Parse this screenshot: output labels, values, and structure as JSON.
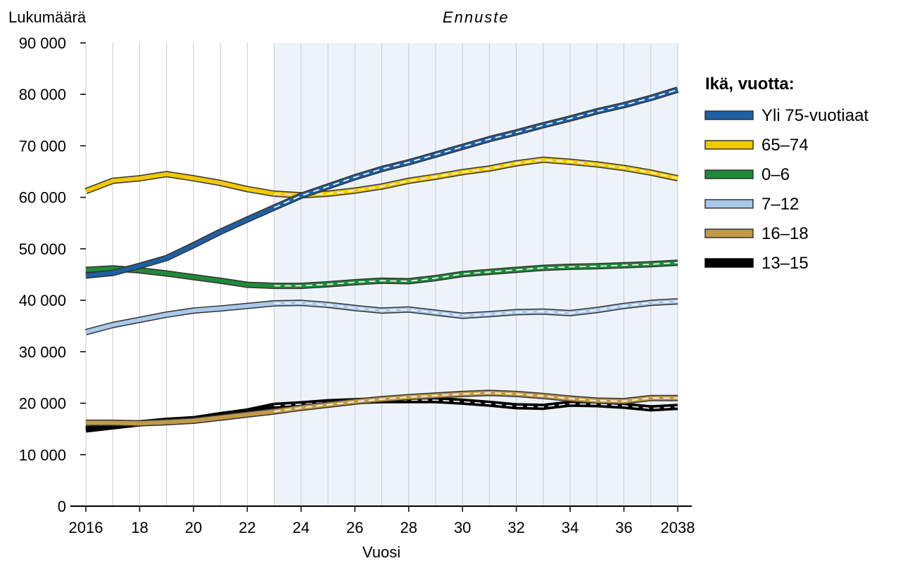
{
  "chart_data": {
    "type": "line",
    "ylabel": "Lukumäärä",
    "xlabel": "Vuosi",
    "forecast_label": "Ennuste",
    "forecast_start": 2023,
    "xlim": [
      2016,
      2038
    ],
    "ylim": [
      0,
      90000
    ],
    "y_ticks": [
      0,
      10000,
      20000,
      30000,
      40000,
      50000,
      60000,
      70000,
      80000,
      90000
    ],
    "y_tick_labels": [
      "0",
      "10 000",
      "20 000",
      "30 000",
      "40 000",
      "50 000",
      "60 000",
      "70 000",
      "80 000",
      "90 000"
    ],
    "x_ticks": [
      2016,
      2018,
      2020,
      2022,
      2024,
      2026,
      2028,
      2030,
      2032,
      2034,
      2036,
      2038
    ],
    "x_tick_labels": [
      "2016",
      "18",
      "20",
      "22",
      "24",
      "26",
      "28",
      "30",
      "32",
      "34",
      "36",
      "2038"
    ],
    "grid": "vertical",
    "legend_title": "Ikä, vuotta:",
    "legend_position": "right",
    "x": [
      2016,
      2017,
      2018,
      2019,
      2020,
      2021,
      2022,
      2023,
      2024,
      2025,
      2026,
      2027,
      2028,
      2029,
      2030,
      2031,
      2032,
      2033,
      2034,
      2035,
      2036,
      2037,
      2038
    ],
    "series": [
      {
        "name": "Yli 75-vuotiaat",
        "color": "#1f5fa3",
        "values": [
          44800,
          45300,
          46700,
          48200,
          50700,
          53300,
          55700,
          58000,
          60300,
          62100,
          63900,
          65500,
          66800,
          68300,
          69800,
          71300,
          72600,
          74000,
          75300,
          76700,
          77900,
          79300,
          80900
        ]
      },
      {
        "name": "65–74",
        "color": "#f2c900",
        "values": [
          61200,
          63200,
          63700,
          64500,
          63700,
          62800,
          61600,
          60700,
          60400,
          60700,
          61300,
          62100,
          63200,
          64000,
          64900,
          65600,
          66600,
          67300,
          66900,
          66400,
          65700,
          64800,
          63700
        ]
      },
      {
        "name": "0–6",
        "color": "#1f8a3b",
        "values": [
          45900,
          46200,
          45800,
          45200,
          44500,
          43800,
          43000,
          42800,
          42800,
          43100,
          43500,
          43800,
          43700,
          44300,
          45100,
          45500,
          45900,
          46300,
          46500,
          46600,
          46800,
          47000,
          47300
        ]
      },
      {
        "name": "7–12",
        "color": "#a9c9ea",
        "values": [
          33800,
          35200,
          36200,
          37200,
          38000,
          38400,
          38900,
          39400,
          39500,
          39100,
          38500,
          38000,
          38200,
          37600,
          37000,
          37300,
          37700,
          37800,
          37500,
          38100,
          38900,
          39500,
          39800
        ]
      },
      {
        "name": "16–18",
        "color": "#c19a48",
        "values": [
          16200,
          16200,
          16100,
          16300,
          16600,
          17200,
          17800,
          18400,
          19100,
          19700,
          20300,
          20800,
          21200,
          21500,
          21800,
          22000,
          21800,
          21400,
          20900,
          20500,
          20400,
          21000,
          21000
        ]
      },
      {
        "name": "13–15",
        "color": "#000000",
        "values": [
          14900,
          15500,
          16100,
          16600,
          16900,
          17700,
          18400,
          19500,
          19800,
          20200,
          20400,
          20600,
          20600,
          20600,
          20300,
          19900,
          19400,
          19300,
          19900,
          19800,
          19500,
          19000,
          19300
        ]
      }
    ]
  }
}
